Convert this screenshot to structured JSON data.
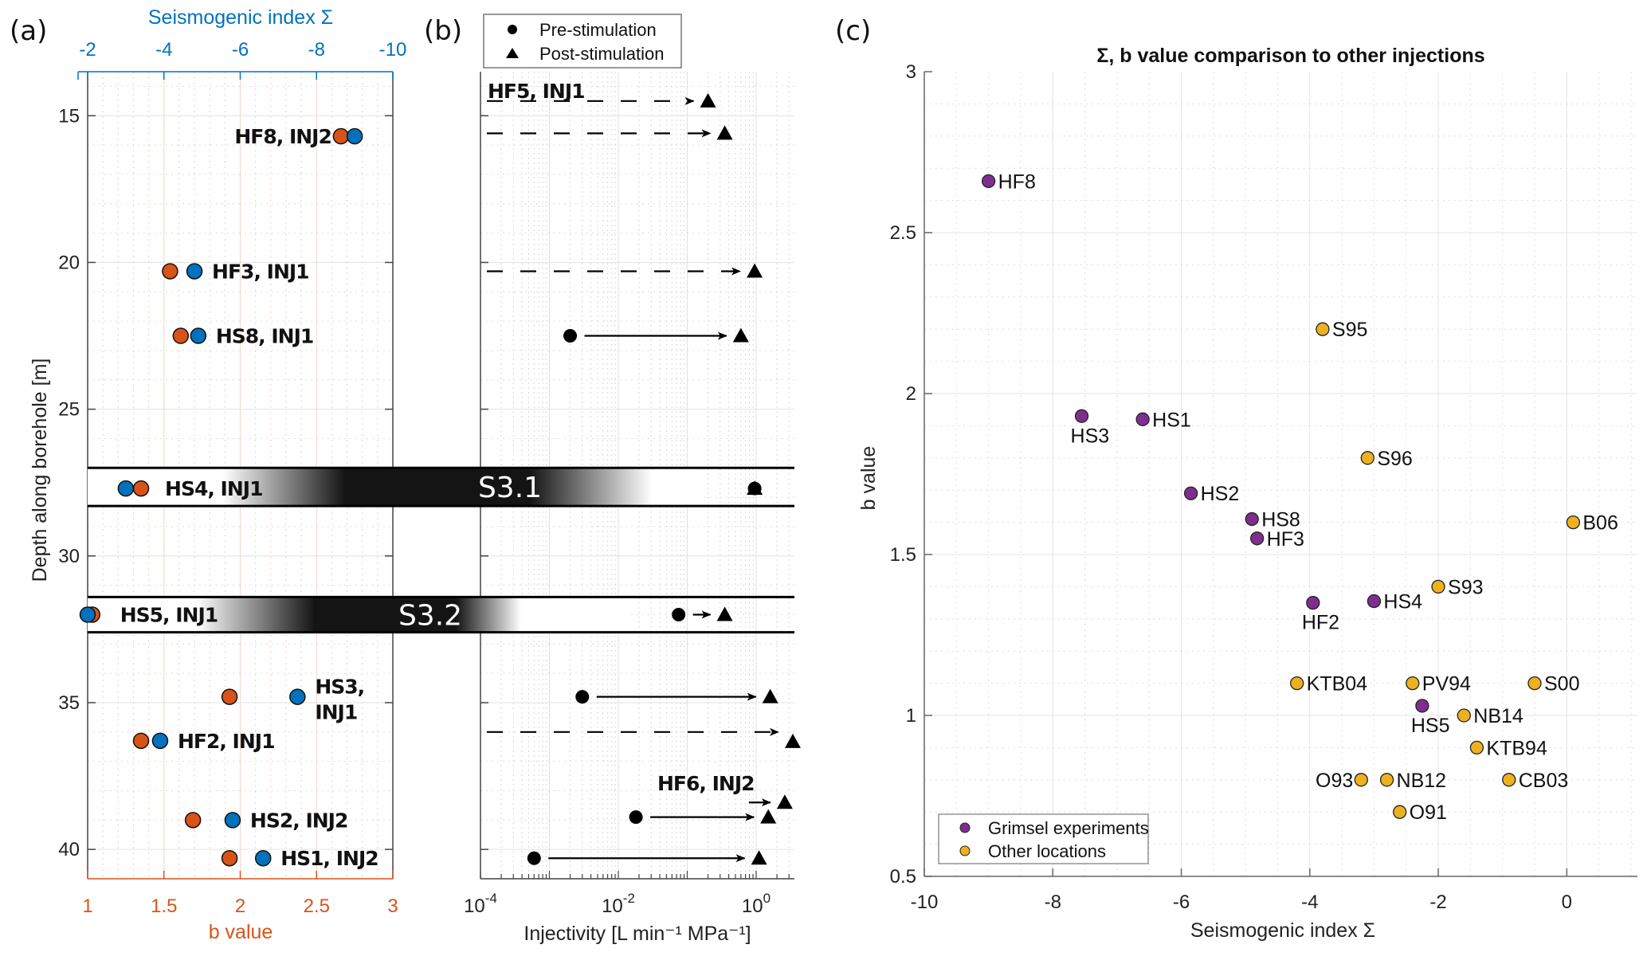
{
  "panels": {
    "a": {
      "label": "(a)"
    },
    "b": {
      "label": "(b)"
    },
    "c": {
      "label": "(c)"
    }
  },
  "chart_data": [
    {
      "id": "a",
      "type": "scatter",
      "title": "",
      "ylabel": "Depth along borehole [m]",
      "xlabel_bottom": "b value",
      "xlabel_top": "Seismogenic index Σ",
      "ylim": [
        13.5,
        41
      ],
      "yticks": [
        15,
        20,
        25,
        30,
        35,
        40
      ],
      "xlim_bottom": [
        1,
        3
      ],
      "xticks_bottom": [
        "1",
        "1.5",
        "2",
        "2.5",
        "3"
      ],
      "xlim_top": [
        -2,
        -10
      ],
      "xticks_top": [
        "-2",
        "-4",
        "-6",
        "-8",
        "-10"
      ],
      "colors": {
        "b_value": "#D95319",
        "sigma": "#0072BD"
      },
      "series": [
        {
          "name": "b value",
          "axis": "bottom"
        },
        {
          "name": "Seismogenic index",
          "axis": "top"
        }
      ],
      "points": [
        {
          "label": "HF8, INJ2",
          "depth": 15.7,
          "b": 2.66,
          "sigma": -9.0
        },
        {
          "label": "HF3, INJ1",
          "depth": 20.3,
          "b": 1.54,
          "sigma": -4.8
        },
        {
          "label": "HS8, INJ1",
          "depth": 22.5,
          "b": 1.61,
          "sigma": -4.9
        },
        {
          "label": "HS4, INJ1",
          "depth": 27.7,
          "b": 1.35,
          "sigma": -3.0
        },
        {
          "label": "HS5, INJ1",
          "depth": 32.0,
          "b": 1.03,
          "sigma": -2.0
        },
        {
          "label": "HS3,\nINJ1",
          "depth": 34.8,
          "b": 1.93,
          "sigma": -7.5
        },
        {
          "label": "HF2, INJ1",
          "depth": 36.3,
          "b": 1.35,
          "sigma": -3.9
        },
        {
          "label": "HS2, INJ2",
          "depth": 39.0,
          "b": 1.69,
          "sigma": -5.8
        },
        {
          "label": "HS1, INJ2",
          "depth": 40.3,
          "b": 1.93,
          "sigma": -6.6
        }
      ],
      "zones": [
        {
          "name": "S3.1",
          "depth_top": 27.0,
          "depth_bottom": 28.3
        },
        {
          "name": "S3.2",
          "depth_top": 31.4,
          "depth_bottom": 32.6
        }
      ]
    },
    {
      "id": "b",
      "type": "scatter",
      "xlabel": "Injectivity [L min⁻¹ MPa⁻¹]",
      "xscale": "log",
      "xlim": [
        0.0001,
        3.5
      ],
      "xticks": [
        "10^-4",
        "10^-2",
        "10^0"
      ],
      "ylim": [
        13.5,
        41
      ],
      "legend": {
        "entries": [
          "Pre-stimulation",
          "Post-stimulation"
        ],
        "placement": "top-left-outside"
      },
      "annotations": [
        "HF5, INJ1",
        "HF6, INJ2"
      ],
      "transitions": [
        {
          "depth": 14.5,
          "pre": null,
          "post": 0.2,
          "dashed": true,
          "label": "HF5, INJ1"
        },
        {
          "depth": 15.6,
          "pre": null,
          "post": 0.35,
          "dashed": true
        },
        {
          "depth": 20.3,
          "pre": null,
          "post": 0.95,
          "dashed": true
        },
        {
          "depth": 22.5,
          "pre": 0.002,
          "post": 0.6,
          "dashed": false
        },
        {
          "depth": 27.7,
          "pre": 0.95,
          "post": 0.95,
          "dashed": false,
          "no_arrow": true
        },
        {
          "depth": 32.0,
          "pre": 0.075,
          "post": 0.35,
          "dashed": false
        },
        {
          "depth": 34.8,
          "pre": 0.003,
          "post": 1.6,
          "dashed": false
        },
        {
          "depth": 36.0,
          "pre": null,
          "post": 3.4,
          "dashed": true
        },
        {
          "depth": 38.4,
          "pre": null,
          "post": 2.6,
          "dashed": false,
          "short": true,
          "label": "HF6, INJ2"
        },
        {
          "depth": 38.9,
          "pre": 0.018,
          "post": 1.5,
          "dashed": false
        },
        {
          "depth": 40.3,
          "pre": 0.0006,
          "post": 1.1,
          "dashed": false
        }
      ]
    },
    {
      "id": "c",
      "type": "scatter",
      "title": "Σ, b value comparison to other injections",
      "xlabel": "Seismogenic index Σ",
      "ylabel": "b value",
      "xlim": [
        -10,
        1.1
      ],
      "ylim": [
        0.5,
        3
      ],
      "xticks": [
        "-10",
        "-8",
        "-6",
        "-4",
        "-2",
        "0"
      ],
      "yticks": [
        "0.5",
        "1",
        "1.5",
        "2",
        "2.5",
        "3"
      ],
      "grid": true,
      "legend": {
        "placement": "bottom-left",
        "entries": [
          {
            "name": "Grimsel experiments",
            "color": "#7E2F8E"
          },
          {
            "name": "Other locations",
            "color": "#EDB120"
          }
        ]
      },
      "series": [
        {
          "name": "Grimsel experiments",
          "color": "#7E2F8E",
          "points": [
            {
              "label": "HF8",
              "x": -9.0,
              "y": 2.66,
              "pos": "right"
            },
            {
              "label": "HS3",
              "x": -7.55,
              "y": 1.93,
              "pos": "below"
            },
            {
              "label": "HS1",
              "x": -6.6,
              "y": 1.92,
              "pos": "right"
            },
            {
              "label": "HS2",
              "x": -5.85,
              "y": 1.69,
              "pos": "right"
            },
            {
              "label": "HS8",
              "x": -4.9,
              "y": 1.61,
              "pos": "right"
            },
            {
              "label": "HF3",
              "x": -4.82,
              "y": 1.55,
              "pos": "right"
            },
            {
              "label": "HF2",
              "x": -3.95,
              "y": 1.35,
              "pos": "below"
            },
            {
              "label": "HS4",
              "x": -3.0,
              "y": 1.355,
              "pos": "right"
            },
            {
              "label": "HS5",
              "x": -2.25,
              "y": 1.03,
              "pos": "below"
            }
          ]
        },
        {
          "name": "Other locations",
          "color": "#EDB120",
          "points": [
            {
              "label": "S95",
              "x": -3.8,
              "y": 2.2,
              "pos": "right"
            },
            {
              "label": "S96",
              "x": -3.1,
              "y": 1.8,
              "pos": "right"
            },
            {
              "label": "B06",
              "x": 0.1,
              "y": 1.6,
              "pos": "right"
            },
            {
              "label": "S93",
              "x": -2.0,
              "y": 1.4,
              "pos": "right"
            },
            {
              "label": "KTB04",
              "x": -4.2,
              "y": 1.1,
              "pos": "right"
            },
            {
              "label": "PV94",
              "x": -2.4,
              "y": 1.1,
              "pos": "right"
            },
            {
              "label": "S00",
              "x": -0.5,
              "y": 1.1,
              "pos": "right"
            },
            {
              "label": "NB14",
              "x": -1.6,
              "y": 1.0,
              "pos": "right"
            },
            {
              "label": "KTB94",
              "x": -1.4,
              "y": 0.9,
              "pos": "right"
            },
            {
              "label": "O93",
              "x": -3.2,
              "y": 0.8,
              "pos": "left"
            },
            {
              "label": "NB12",
              "x": -2.8,
              "y": 0.8,
              "pos": "right"
            },
            {
              "label": "CB03",
              "x": -0.9,
              "y": 0.8,
              "pos": "right"
            },
            {
              "label": "O91",
              "x": -2.6,
              "y": 0.7,
              "pos": "right"
            }
          ]
        }
      ]
    }
  ]
}
